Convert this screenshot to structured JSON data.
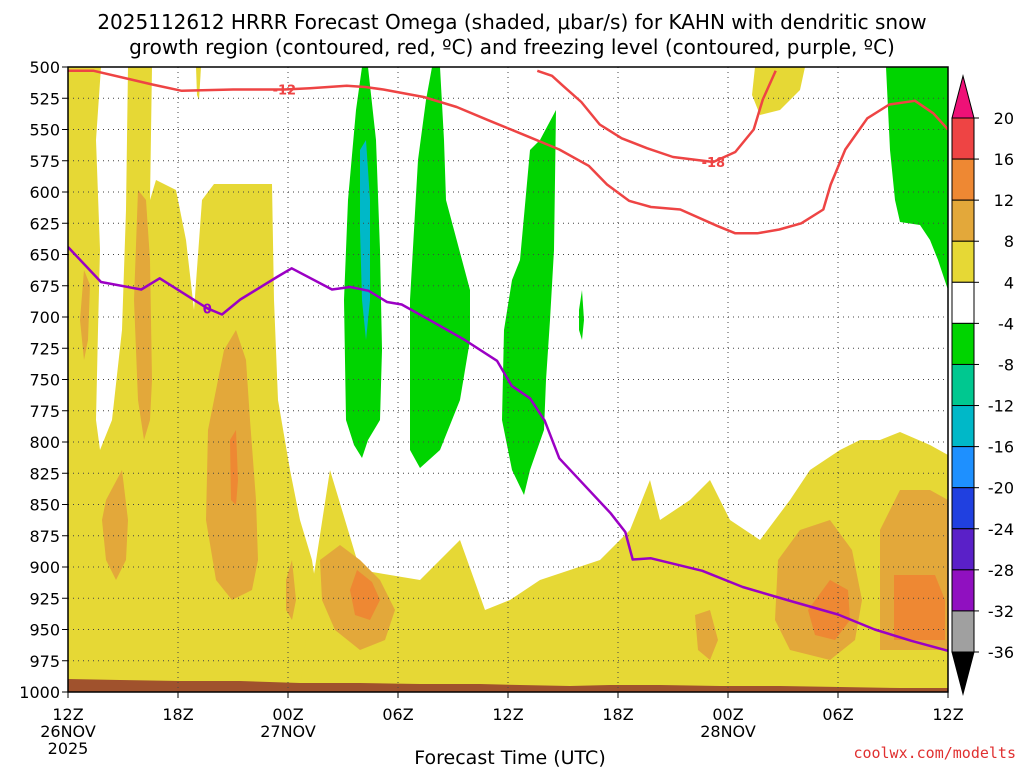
{
  "title": {
    "line1": "2025112612 HRRR Forecast Omega (shaded, μbar/s) for KAHN with dendritic snow",
    "line2": "growth region (contoured, red, ºC) and freezing level (contoured, purple, ºC)"
  },
  "credit": "coolwx.com/modelts",
  "chart_data": {
    "type": "time-height cross section",
    "title": "2025112612 HRRR Forecast Omega (shaded, μbar/s) for KAHN with dendritic snow growth region (contoured, red, ºC) and freezing level (contoured, purple, ºC)",
    "xlabel": "Forecast Time (UTC)",
    "ylabel": "",
    "x_unit": "forecast hour",
    "xlim": [
      0,
      48
    ],
    "ylim": [
      1000,
      500
    ],
    "y_ticks": [
      500,
      525,
      550,
      575,
      600,
      625,
      650,
      675,
      700,
      725,
      750,
      775,
      800,
      825,
      850,
      875,
      900,
      925,
      950,
      975,
      1000
    ],
    "x_ticks": [
      {
        "hour": 0,
        "label": "12Z",
        "date": "26NOV",
        "year": "2025"
      },
      {
        "hour": 6,
        "label": "18Z"
      },
      {
        "hour": 12,
        "label": "00Z",
        "date": "27NOV"
      },
      {
        "hour": 18,
        "label": "06Z"
      },
      {
        "hour": 24,
        "label": "12Z"
      },
      {
        "hour": 30,
        "label": "18Z"
      },
      {
        "hour": 36,
        "label": "00Z",
        "date": "28NOV"
      },
      {
        "hour": 42,
        "label": "06Z"
      },
      {
        "hour": 48,
        "label": "12Z"
      }
    ],
    "grid": true,
    "colorbar": {
      "labels": [
        "20",
        "16",
        "12",
        "8",
        "4",
        "-4",
        "-8",
        "-12",
        "-16",
        "-20",
        "-24",
        "-28",
        "-32",
        "-36"
      ],
      "bins": [
        {
          "from": 16,
          "to": 20,
          "color": "#ee4444"
        },
        {
          "from": 12,
          "to": 16,
          "color": "#ee8833"
        },
        {
          "from": 8,
          "to": 12,
          "color": "#e3a83a"
        },
        {
          "from": 4,
          "to": 8,
          "color": "#e6d835"
        },
        {
          "from": -4,
          "to": 4,
          "color": "#ffffff"
        },
        {
          "from": -8,
          "to": -4,
          "color": "#00d400"
        },
        {
          "from": -12,
          "to": -8,
          "color": "#00c890"
        },
        {
          "from": -16,
          "to": -12,
          "color": "#00b8c8"
        },
        {
          "from": -20,
          "to": -16,
          "color": "#1e90ff"
        },
        {
          "from": -24,
          "to": -20,
          "color": "#2040e0"
        },
        {
          "from": -28,
          "to": -24,
          "color": "#5a20c8"
        },
        {
          "from": -32,
          "to": -28,
          "color": "#9010c0"
        },
        {
          "from": -36,
          "to": -32,
          "color": "#a0a0a0"
        }
      ],
      "over_color": "#ee1177",
      "under_color": "#000000"
    },
    "contours": [
      {
        "value": -12,
        "label": "-12",
        "color": "#ee4444",
        "points": [
          [
            0,
            503
          ],
          [
            1.4,
            503
          ],
          [
            4.6,
            514
          ],
          [
            6.2,
            519
          ],
          [
            9,
            518
          ],
          [
            11.8,
            518
          ],
          [
            13.2,
            517
          ],
          [
            15.2,
            515
          ],
          [
            16.2,
            516
          ],
          [
            17.2,
            518
          ],
          [
            19.4,
            524
          ],
          [
            21.2,
            532
          ],
          [
            23,
            543
          ],
          [
            25,
            555
          ],
          [
            26.8,
            566
          ],
          [
            28.4,
            579
          ],
          [
            29.4,
            594
          ],
          [
            30.6,
            607
          ],
          [
            31.8,
            612
          ],
          [
            33.4,
            614
          ],
          [
            35.4,
            627
          ],
          [
            36.4,
            633
          ],
          [
            37.6,
            633
          ],
          [
            38.8,
            630
          ],
          [
            40,
            625
          ],
          [
            41.2,
            614
          ],
          [
            41.6,
            594
          ],
          [
            42.4,
            566
          ],
          [
            43.6,
            541
          ],
          [
            44.8,
            530
          ],
          [
            46.2,
            527
          ],
          [
            47.2,
            537
          ],
          [
            48,
            550
          ]
        ]
      },
      {
        "value": -18,
        "label": "-18",
        "color": "#ee4444",
        "points": [
          [
            25.6,
            503
          ],
          [
            26.4,
            507
          ],
          [
            27,
            515
          ],
          [
            28,
            528
          ],
          [
            29,
            546
          ],
          [
            30.2,
            557
          ],
          [
            31.6,
            565
          ],
          [
            33,
            572
          ],
          [
            35.2,
            576
          ],
          [
            36.4,
            568
          ],
          [
            37.4,
            550
          ],
          [
            37.9,
            526
          ],
          [
            38.6,
            503
          ]
        ]
      },
      {
        "value": 0,
        "label": "0",
        "color": "#9b00c4",
        "points": [
          [
            0,
            644
          ],
          [
            1.8,
            672
          ],
          [
            4,
            678
          ],
          [
            5,
            669
          ],
          [
            7.6,
            693
          ],
          [
            8.4,
            698
          ],
          [
            9.4,
            686
          ],
          [
            11.4,
            668
          ],
          [
            12.2,
            661
          ],
          [
            14.4,
            678
          ],
          [
            15.4,
            676
          ],
          [
            16.4,
            679
          ],
          [
            17.4,
            688
          ],
          [
            18.2,
            690
          ],
          [
            19.8,
            703
          ],
          [
            21.6,
            718
          ],
          [
            23.4,
            735
          ],
          [
            24.2,
            755
          ],
          [
            25.2,
            765
          ],
          [
            26,
            783
          ],
          [
            26.8,
            813
          ],
          [
            28.2,
            835
          ],
          [
            29.6,
            857
          ],
          [
            30.4,
            872
          ],
          [
            30.8,
            894
          ],
          [
            31.8,
            893
          ],
          [
            34.6,
            903
          ],
          [
            36.8,
            916
          ],
          [
            39.6,
            928
          ],
          [
            42,
            938
          ],
          [
            44,
            950
          ],
          [
            46,
            959
          ],
          [
            48,
            967
          ]
        ]
      }
    ]
  }
}
